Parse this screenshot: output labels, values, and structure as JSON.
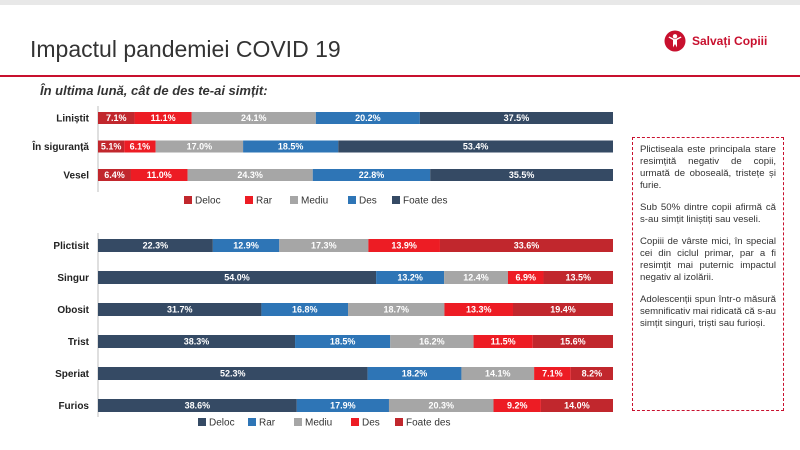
{
  "header": {
    "title": "Impactul pandemiei COVID 19",
    "brand": "Salvați Copiii",
    "question": "În ultima lună, cât de des te-ai simțit:"
  },
  "colors": {
    "accent": "#c8102e",
    "dark_red": "#c1272d",
    "red": "#ed1c24",
    "gray": "#a6a6a6",
    "blue": "#2e75b6",
    "navy": "#354a64"
  },
  "notes": [
    "Plictiseala este principala stare resimțită negativ de copii, urmată de oboseală, tristețe și furie.",
    "Sub 50% dintre copii afirmă că s-au simțit liniștiți sau veseli.",
    "Copiii de vârste mici, în special cei din ciclul primar, par a fi resimțit mai puternic impactul negativ al izolării.",
    "Adolescenții spun într-o măsură semnificativ mai ridicată că s-au simțit singuri, triști sau furioși."
  ],
  "chart_data": [
    {
      "type": "bar",
      "orientation": "horizontal",
      "stacked": "100%",
      "categories": [
        "Liniștit",
        "În siguranță",
        "Vesel"
      ],
      "series": [
        {
          "name": "Deloc",
          "color": "#c1272d",
          "values": [
            7.1,
            5.1,
            6.4
          ]
        },
        {
          "name": "Rar",
          "color": "#ed1c24",
          "values": [
            11.1,
            6.1,
            11.0
          ]
        },
        {
          "name": "Mediu",
          "color": "#a6a6a6",
          "values": [
            24.1,
            17.0,
            24.3
          ]
        },
        {
          "name": "Des",
          "color": "#2e75b6",
          "values": [
            20.2,
            18.5,
            22.8
          ]
        },
        {
          "name": "Foate des",
          "color": "#354a64",
          "values": [
            37.5,
            53.4,
            35.5
          ]
        }
      ],
      "legend": "bottom"
    },
    {
      "type": "bar",
      "orientation": "horizontal",
      "stacked": "100%",
      "categories": [
        "Plictisit",
        "Singur",
        "Obosit",
        "Trist",
        "Speriat",
        "Furios"
      ],
      "series": [
        {
          "name": "Deloc",
          "color": "#354a64",
          "values": [
            22.3,
            54.0,
            31.7,
            38.3,
            52.3,
            38.6
          ]
        },
        {
          "name": "Rar",
          "color": "#2e75b6",
          "values": [
            12.9,
            13.2,
            16.8,
            18.5,
            18.2,
            17.9
          ]
        },
        {
          "name": "Mediu",
          "color": "#a6a6a6",
          "values": [
            17.3,
            12.4,
            18.7,
            16.2,
            14.1,
            20.3
          ]
        },
        {
          "name": "Des",
          "color": "#ed1c24",
          "values": [
            13.9,
            6.9,
            13.3,
            11.5,
            7.1,
            9.2
          ]
        },
        {
          "name": "Foate des",
          "color": "#c1272d",
          "values": [
            33.6,
            13.5,
            19.4,
            15.6,
            8.2,
            14.0
          ]
        }
      ],
      "legend": "bottom"
    }
  ]
}
